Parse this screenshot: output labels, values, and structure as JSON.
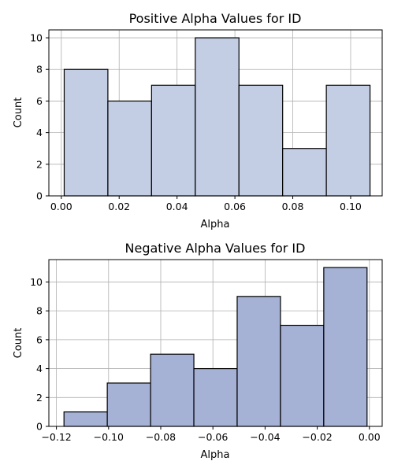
{
  "chart_data": [
    {
      "type": "bar",
      "title": "Positive Alpha Values for ID",
      "xlabel": "Alpha",
      "ylabel": "Count",
      "bin_edges": [
        0.001,
        0.0161,
        0.0312,
        0.0463,
        0.0614,
        0.0765,
        0.0916,
        0.1067
      ],
      "values": [
        8,
        6,
        7,
        10,
        7,
        3,
        7
      ],
      "xlim": [
        -0.0043,
        0.1109
      ],
      "ylim": [
        0,
        10.5
      ],
      "xticks": [
        0.0,
        0.02,
        0.04,
        0.06,
        0.08,
        0.1
      ],
      "xtick_labels": [
        "0.00",
        "0.02",
        "0.04",
        "0.06",
        "0.08",
        "0.10"
      ],
      "yticks": [
        0,
        2,
        4,
        6,
        8,
        10
      ],
      "ytick_labels": [
        "0",
        "2",
        "4",
        "6",
        "8",
        "10"
      ],
      "grid": true,
      "bar_color": "#c3cde3",
      "edge_color": "#000000"
    },
    {
      "type": "bar",
      "title": "Negative Alpha Values for ID",
      "xlabel": "Alpha",
      "ylabel": "Count",
      "bin_edges": [
        -0.1171,
        -0.1005,
        -0.0839,
        -0.0673,
        -0.0507,
        -0.0341,
        -0.0175,
        -0.0009
      ],
      "values": [
        1,
        3,
        5,
        4,
        9,
        7,
        11
      ],
      "xlim": [
        -0.1229,
        0.0049
      ],
      "ylim": [
        0,
        11.55
      ],
      "xticks": [
        -0.12,
        -0.1,
        -0.08,
        -0.06,
        -0.04,
        -0.02,
        0.0
      ],
      "xtick_labels": [
        "−0.12",
        "−0.10",
        "−0.08",
        "−0.06",
        "−0.04",
        "−0.02",
        "0.00"
      ],
      "yticks": [
        0,
        2,
        4,
        6,
        8,
        10
      ],
      "ytick_labels": [
        "0",
        "2",
        "4",
        "6",
        "8",
        "10"
      ],
      "grid": true,
      "bar_color": "#a5b1d5",
      "edge_color": "#000000"
    }
  ]
}
